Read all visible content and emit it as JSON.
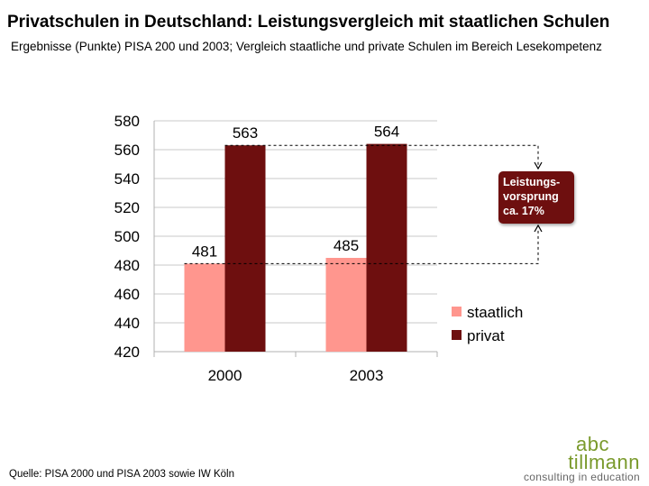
{
  "title": "Privatschulen in Deutschland: Leistungsvergleich mit staatlichen Schulen",
  "subtitle": "Ergebnisse (Punkte) PISA 200 und 2003; Vergleich staatliche und private Schulen im Bereich Lesekompetenz",
  "chart_data": {
    "type": "bar",
    "categories": [
      "2000",
      "2003"
    ],
    "series": [
      {
        "name": "staatlich",
        "values": [
          481,
          485
        ],
        "color": "#ff968e"
      },
      {
        "name": "privat",
        "values": [
          563,
          564
        ],
        "color": "#6e0f0f"
      }
    ],
    "ylim": [
      420,
      580
    ],
    "yticks": [
      420,
      440,
      460,
      480,
      500,
      520,
      540,
      560,
      580
    ],
    "grid": true,
    "legend_position": "right",
    "xlabel": "",
    "ylabel": ""
  },
  "callout": {
    "lines": [
      "Leistungs-",
      "vorsprung",
      "ca. 17%"
    ],
    "color": "#6e0f0f"
  },
  "source": "Quelle: PISA 2000 und PISA 2003 sowie IW Köln",
  "logo": {
    "line1": "abc",
    "line2": "tillmann",
    "line3": "consulting in education"
  }
}
